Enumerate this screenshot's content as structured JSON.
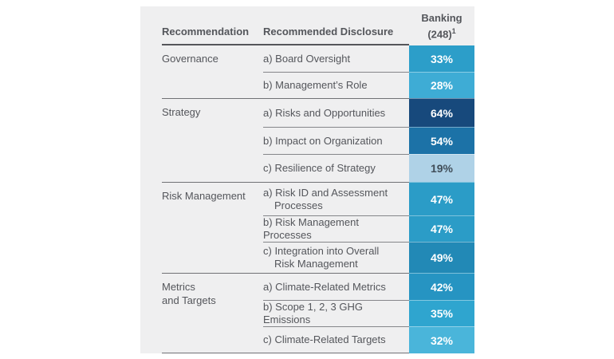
{
  "page": {
    "background": "#ffffff",
    "panel_background": "#efeff0",
    "text_color": "#54565b"
  },
  "table": {
    "header": {
      "recommendation": "Recommendation",
      "disclosure": "Recommended Disclosure",
      "value_line1": "Banking",
      "value_line2": "(248)",
      "value_footnote": "1"
    },
    "groups": [
      {
        "name_lines": [
          "Governance"
        ],
        "rows": [
          {
            "lines": [
              "a) Board Oversight"
            ],
            "value": "33%",
            "bg": "#2C9EC9",
            "fg": "#FFFFFF"
          },
          {
            "lines": [
              "b) Management’s Role"
            ],
            "value": "28%",
            "bg": "#3EACD5",
            "fg": "#FFFFFF"
          }
        ]
      },
      {
        "name_lines": [
          "Strategy"
        ],
        "rows": [
          {
            "lines": [
              "a) Risks and Opportunities"
            ],
            "value": "64%",
            "bg": "#17497C",
            "fg": "#FFFFFF"
          },
          {
            "lines": [
              "b) Impact on Organization"
            ],
            "value": "54%",
            "bg": "#1C72A7",
            "fg": "#FFFFFF"
          },
          {
            "lines": [
              "c) Resilience of Strategy"
            ],
            "value": "19%",
            "bg": "#AFD2E7",
            "fg": "#414E59"
          }
        ]
      },
      {
        "name_lines": [
          "Risk Management"
        ],
        "rows": [
          {
            "lines": [
              "a) Risk ID and Assessment",
              "Processes"
            ],
            "value": "47%",
            "bg": "#2B9CC7",
            "fg": "#FFFFFF"
          },
          {
            "lines": [
              "b) Risk Management Processes"
            ],
            "value": "47%",
            "bg": "#2B9CC7",
            "fg": "#FFFFFF"
          },
          {
            "lines": [
              "c) Integration into Overall",
              "Risk Management"
            ],
            "value": "49%",
            "bg": "#2289B6",
            "fg": "#FFFFFF"
          }
        ]
      },
      {
        "name_lines": [
          "Metrics",
          "and Targets"
        ],
        "rows": [
          {
            "lines": [
              "a) Climate-Related Metrics"
            ],
            "value": "42%",
            "bg": "#2694C2",
            "fg": "#FFFFFF"
          },
          {
            "lines": [
              "b) Scope 1, 2, 3 GHG Emissions"
            ],
            "value": "35%",
            "bg": "#2FA5CF",
            "fg": "#FFFFFF"
          },
          {
            "lines": [
              "c) Climate-Related Targets"
            ],
            "value": "32%",
            "bg": "#4AB5DA",
            "fg": "#FFFFFF"
          }
        ]
      }
    ]
  },
  "chart_data": {
    "type": "table",
    "title": "",
    "columns": [
      "Recommendation",
      "Recommended Disclosure",
      "Banking (248)"
    ],
    "footnote_marker": "1",
    "unit": "%",
    "rows": [
      [
        "Governance",
        "a) Board Oversight",
        33
      ],
      [
        "Governance",
        "b) Management’s Role",
        28
      ],
      [
        "Strategy",
        "a) Risks and Opportunities",
        64
      ],
      [
        "Strategy",
        "b) Impact on Organization",
        54
      ],
      [
        "Strategy",
        "c) Resilience of Strategy",
        19
      ],
      [
        "Risk Management",
        "a) Risk ID and Assessment Processes",
        47
      ],
      [
        "Risk Management",
        "b) Risk Management Processes",
        47
      ],
      [
        "Risk Management",
        "c) Integration into Overall Risk Management",
        49
      ],
      [
        "Metrics and Targets",
        "a) Climate-Related Metrics",
        42
      ],
      [
        "Metrics and Targets",
        "b) Scope 1, 2, 3 GHG Emissions",
        35
      ],
      [
        "Metrics and Targets",
        "c) Climate-Related Targets",
        32
      ]
    ],
    "layout": {
      "heatmap_column": "Banking (248)",
      "scale": "light blue (low %) to dark navy (high %)"
    }
  }
}
